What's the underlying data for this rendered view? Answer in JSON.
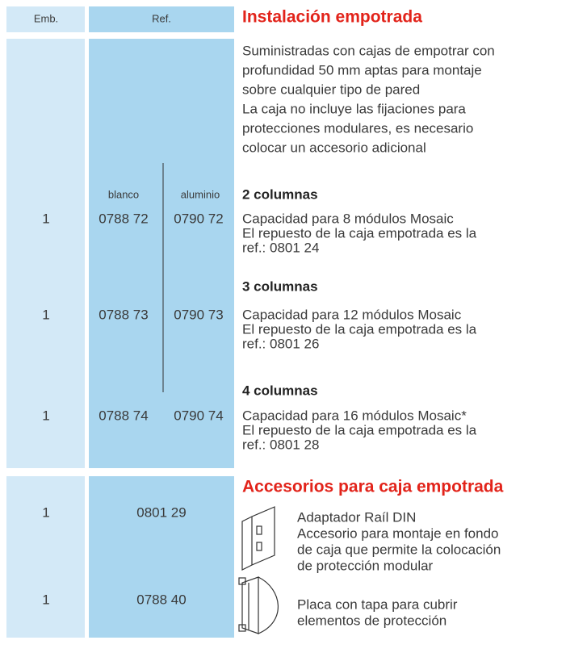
{
  "header": {
    "emb": "Emb.",
    "ref": "Ref.",
    "title": "Instalación empotrada"
  },
  "intro": [
    "Suministradas con cajas de empotrar con",
    "profundidad 50 mm aptas para montaje",
    "sobre cualquier tipo de pared",
    "La caja no incluye las fijaciones para",
    "protecciones modulares, es necesario",
    "colocar un accesorio adicional"
  ],
  "columns": {
    "blanco": "blanco",
    "aluminio": "aluminio"
  },
  "items": [
    {
      "heading": "2 columnas",
      "emb": "1",
      "ref_blanco": "0788 72",
      "ref_aluminio": "0790 72",
      "lines": [
        "Capacidad para 8 módulos Mosaic",
        "El repuesto de la caja empotrada es la",
        "ref.: 0801 24"
      ]
    },
    {
      "heading": "3 columnas",
      "emb": "1",
      "ref_blanco": "0788 73",
      "ref_aluminio": "0790 73",
      "lines": [
        "Capacidad para 12 módulos Mosaic",
        "El repuesto de la caja empotrada es la",
        "ref.: 0801 26"
      ]
    },
    {
      "heading": "4 columnas",
      "emb": "1",
      "ref_blanco": "0788 74",
      "ref_aluminio": "0790 74",
      "lines": [
        "Capacidad para 16 módulos Mosaic*",
        "El repuesto de la caja empotrada es la",
        "ref.: 0801 28"
      ]
    }
  ],
  "accessories": {
    "title": "Accesorios para caja empotrada",
    "items": [
      {
        "emb": "1",
        "ref": "0801 29",
        "lines": [
          "Adaptador Raíl DIN",
          "Accesorio para montaje en fondo",
          "de caja que permite la colocación",
          "de protección modular"
        ]
      },
      {
        "emb": "1",
        "ref": "0788 40",
        "lines": [
          "Placa con tapa para cubrir",
          "elementos de protección"
        ]
      }
    ]
  }
}
